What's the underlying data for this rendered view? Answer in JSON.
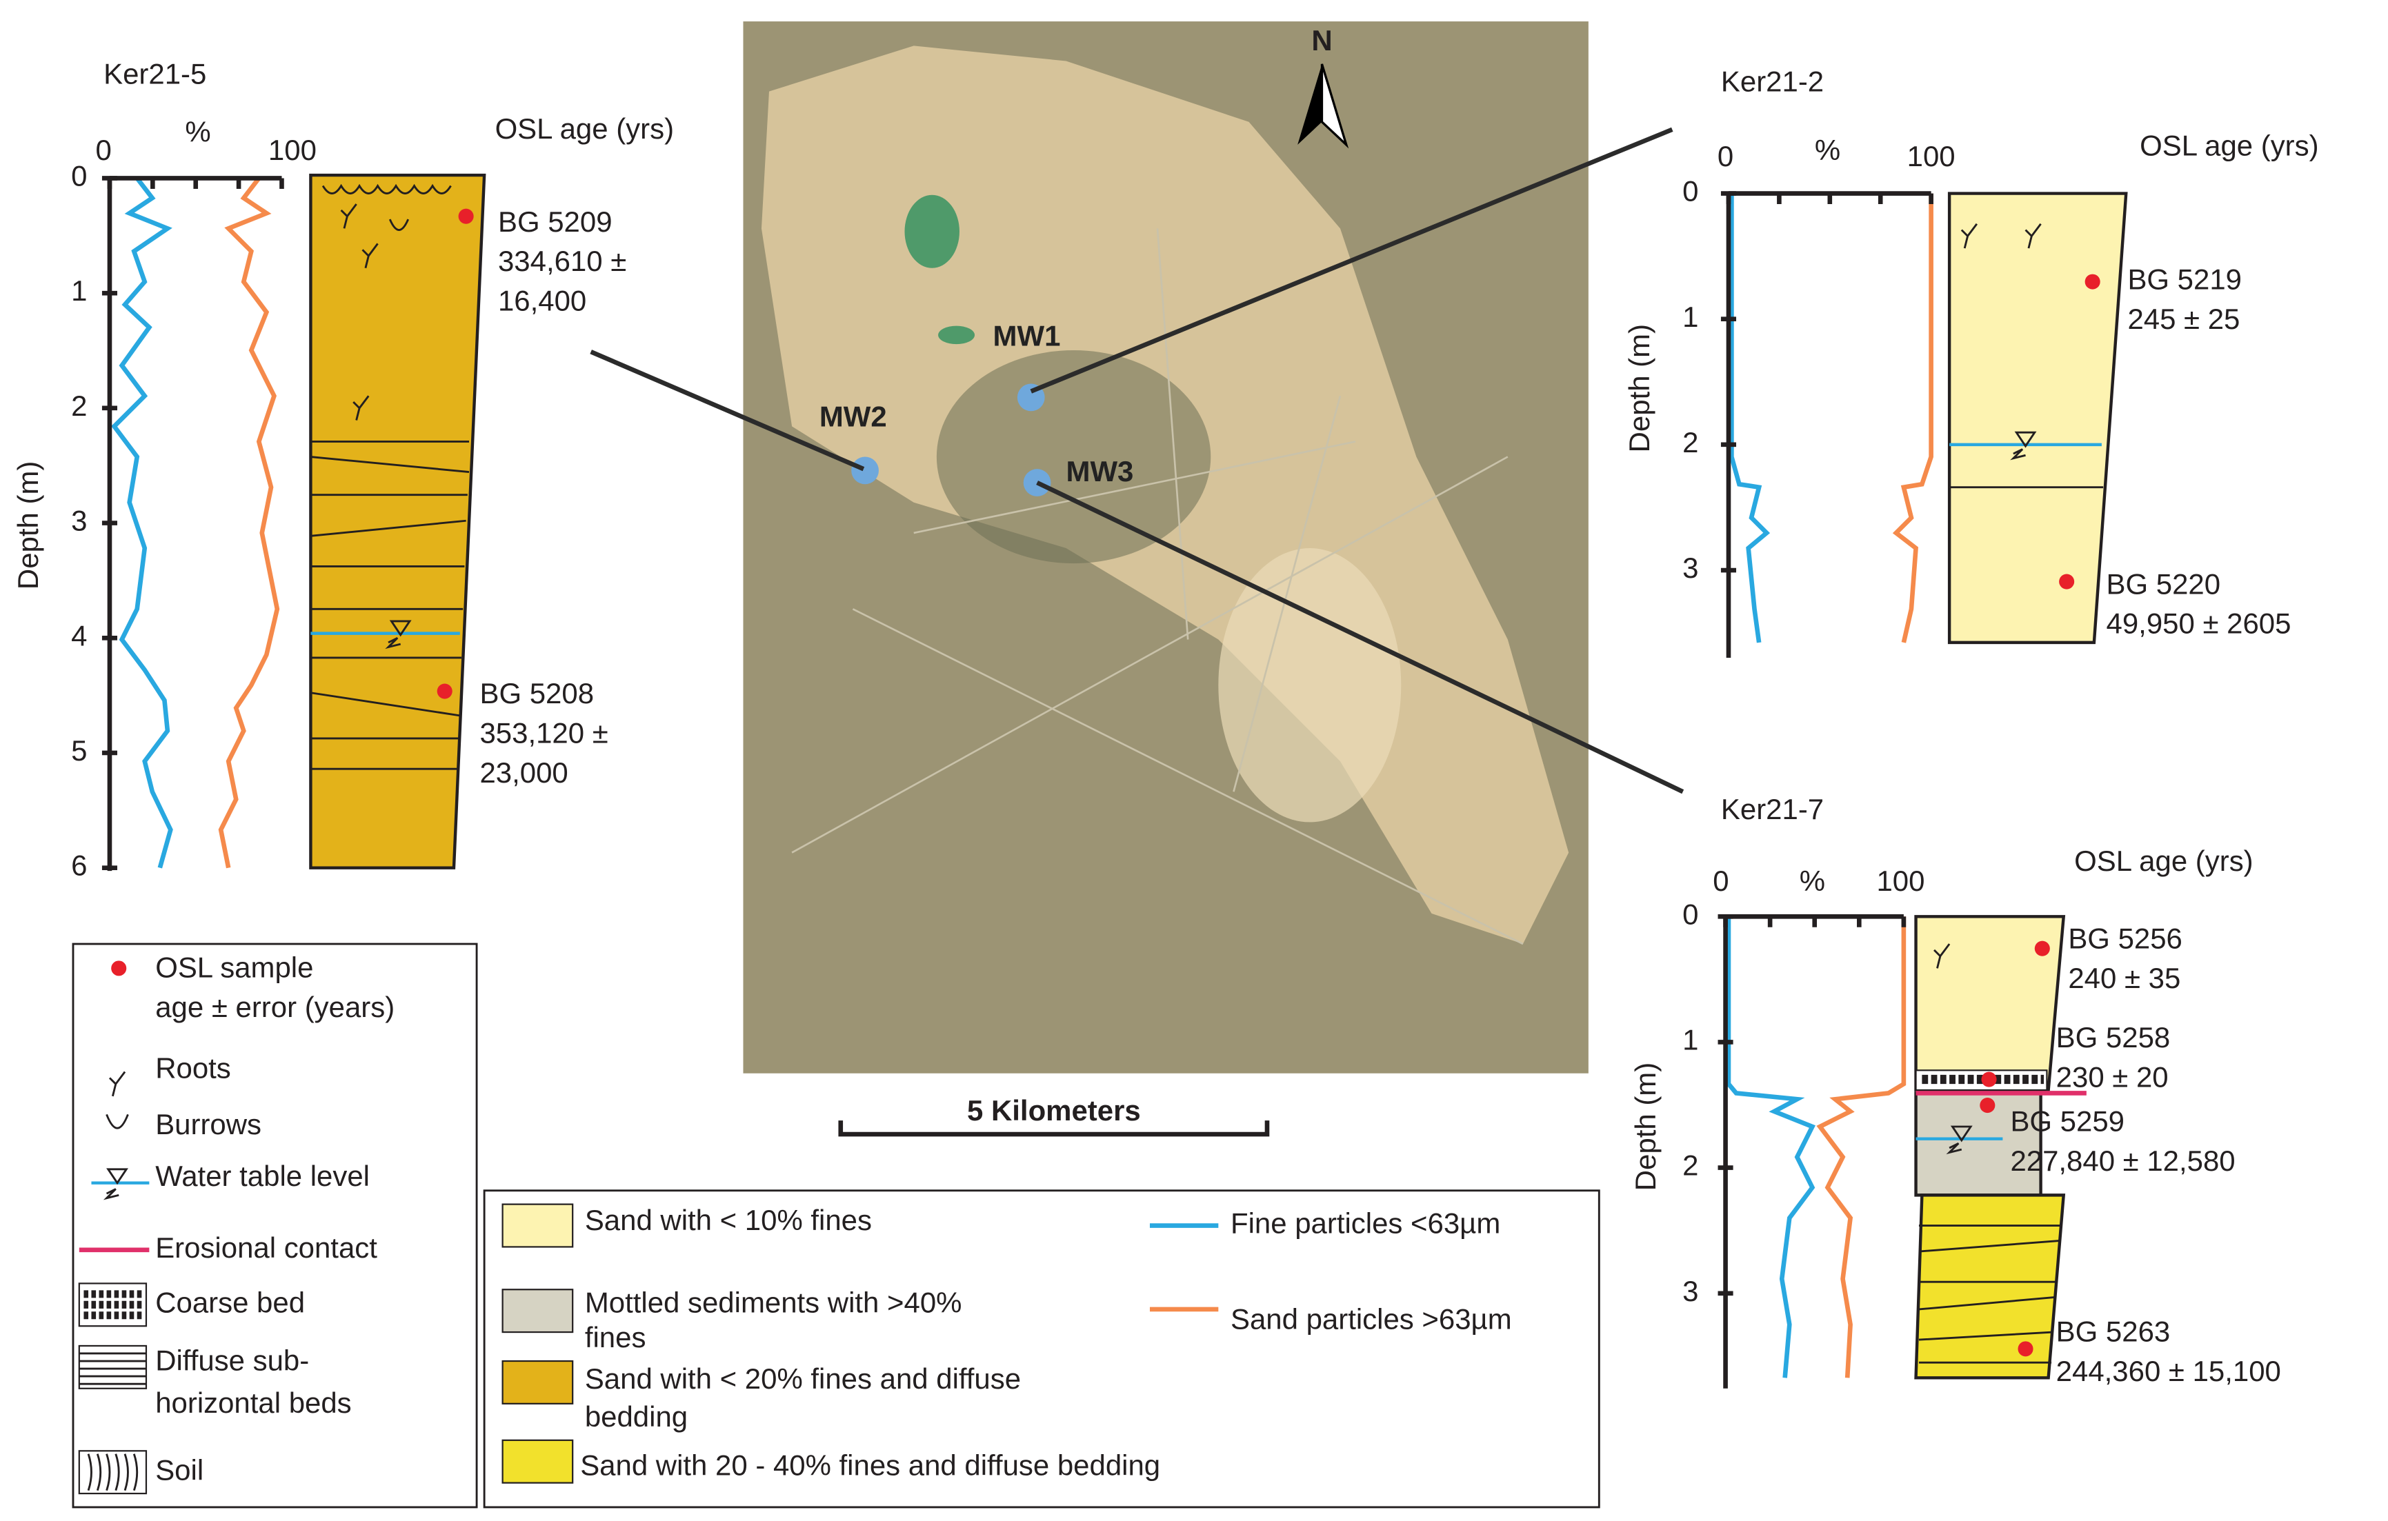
{
  "map": {
    "north": "N",
    "sites": [
      "MW1",
      "MW2",
      "MW3"
    ],
    "scale_bar": "5 Kilometers"
  },
  "logs": [
    {
      "title": "Ker21-5",
      "x_label": "%",
      "x_ticks": [
        "0",
        "100"
      ],
      "y_label": "Depth (m)",
      "y_ticks": [
        "0",
        "1",
        "2",
        "3",
        "4",
        "5",
        "6"
      ],
      "age_header": "OSL age (yrs)",
      "samples": [
        {
          "lines": [
            "BG 5209",
            "334,610 ±",
            "16,400"
          ]
        },
        {
          "lines": [
            "BG 5208",
            "353,120 ±",
            "23,000"
          ]
        }
      ]
    },
    {
      "title": "Ker21-2",
      "x_label": "%",
      "x_ticks": [
        "0",
        "100"
      ],
      "y_label": "Depth (m)",
      "y_ticks": [
        "0",
        "1",
        "2",
        "3"
      ],
      "age_header": "OSL age (yrs)",
      "samples": [
        {
          "lines": [
            "BG 5219",
            "245 ± 25"
          ]
        },
        {
          "lines": [
            "BG 5220",
            "49,950 ± 2605"
          ]
        }
      ]
    },
    {
      "title": "Ker21-7",
      "x_label": "%",
      "x_ticks": [
        "0",
        "100"
      ],
      "y_label": "Depth (m)",
      "y_ticks": [
        "0",
        "1",
        "2",
        "3"
      ],
      "age_header": "OSL age (yrs)",
      "samples": [
        {
          "lines": [
            "BG 5256",
            "240 ± 35"
          ]
        },
        {
          "lines": [
            "BG 5258",
            "230 ± 20"
          ]
        },
        {
          "lines": [
            "BG 5259",
            "227,840 ± 12,580"
          ]
        },
        {
          "lines": [
            "BG 5263",
            "244,360 ± 15,100"
          ]
        }
      ]
    }
  ],
  "legend_symbols": [
    {
      "lines": [
        "OSL sample",
        "age ± error (years)"
      ]
    },
    {
      "lines": [
        "Roots"
      ]
    },
    {
      "lines": [
        "Burrows"
      ]
    },
    {
      "lines": [
        "Water table level"
      ]
    },
    {
      "lines": [
        "Erosional contact"
      ]
    },
    {
      "lines": [
        "Coarse bed"
      ]
    },
    {
      "lines": [
        "Diffuse sub-",
        "horizontal beds"
      ]
    },
    {
      "lines": [
        "Soil"
      ]
    }
  ],
  "legend_units": [
    {
      "lines": [
        "Sand with < 10% fines"
      ]
    },
    {
      "lines": [
        "Mottled sediments with >40%",
        "fines"
      ]
    },
    {
      "lines": [
        "Sand with < 20% fines and diffuse",
        "bedding"
      ]
    },
    {
      "lines": [
        "Sand with 20 - 40% fines and diffuse bedding"
      ]
    }
  ],
  "legend_curves": [
    {
      "lines": [
        "Fine particles <63µm"
      ]
    },
    {
      "lines": [
        "Sand particles >63µm"
      ]
    }
  ]
}
